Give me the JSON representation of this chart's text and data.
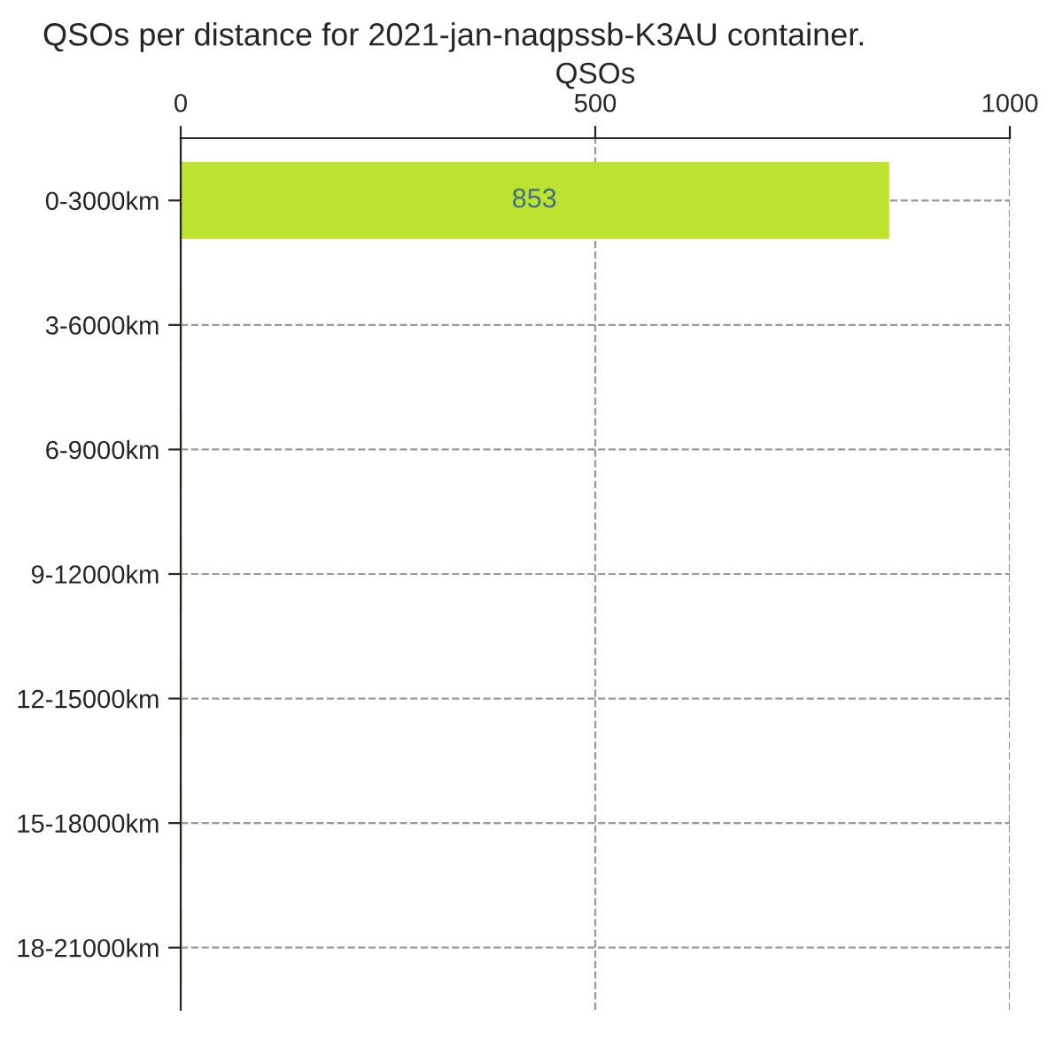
{
  "chart_data": {
    "type": "bar",
    "orientation": "horizontal",
    "title": "QSOs per distance for 2021-jan-naqpssb-K3AU container.",
    "xlabel": "QSOs",
    "categories": [
      "0-3000km",
      "3-6000km",
      "6-9000km",
      "9-12000km",
      "12-15000km",
      "15-18000km",
      "18-21000km"
    ],
    "values": [
      853,
      0,
      0,
      0,
      0,
      0,
      0
    ],
    "value_labels": [
      "853",
      null,
      null,
      null,
      null,
      null,
      null
    ],
    "color": "#bde22f",
    "xlim": [
      0,
      1000
    ],
    "xticks": [
      0,
      500,
      1000
    ],
    "grid": true
  }
}
